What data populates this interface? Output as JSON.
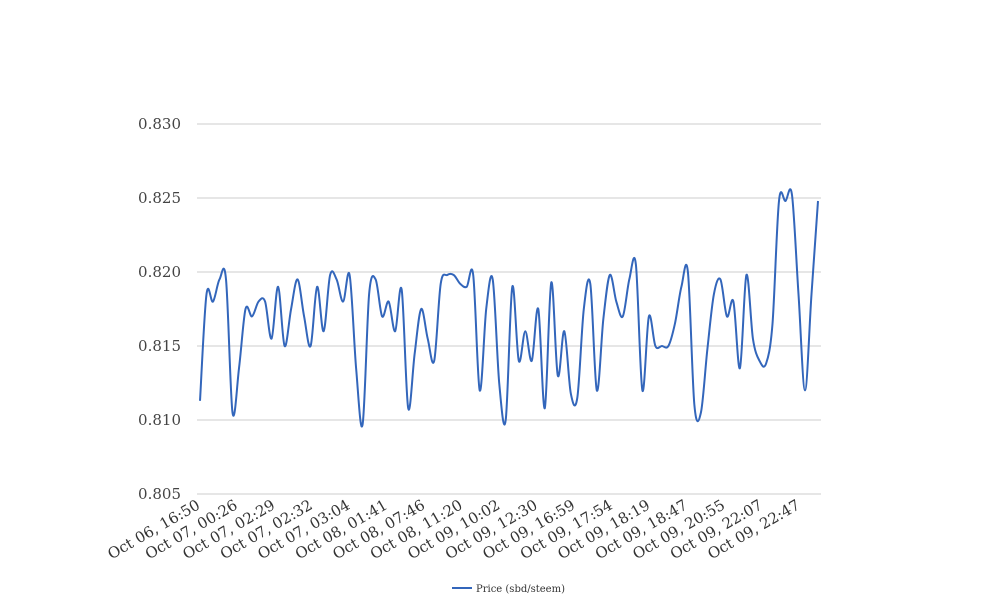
{
  "chart_data": {
    "type": "line",
    "title": "",
    "xlabel": "",
    "ylabel": "",
    "ylim": [
      0.805,
      0.83
    ],
    "yticks": [
      "0.830",
      "0.825",
      "0.820",
      "0.815",
      "0.810",
      "0.805"
    ],
    "grid": true,
    "legend_position": "bottom-center",
    "x_tick_labels": [
      "Oct 06, 16:50",
      "Oct 07, 00:26",
      "Oct 07, 02:29",
      "Oct 07, 02:32",
      "Oct 07, 03:04",
      "Oct 08, 01:41",
      "Oct 08, 07:46",
      "Oct 08, 11:20",
      "Oct 09, 10:02",
      "Oct 09, 12:30",
      "Oct 09, 16:59",
      "Oct 09, 17:54",
      "Oct 09, 18:19",
      "Oct 09, 18:47",
      "Oct 09, 20:55",
      "Oct 09, 22:07",
      "Oct 09, 22:47"
    ],
    "series": [
      {
        "name": "Price (sbd/steem)",
        "color": "#3366bb",
        "values": [
          0.8113,
          0.8185,
          0.818,
          0.8195,
          0.8195,
          0.8105,
          0.8135,
          0.8175,
          0.817,
          0.818,
          0.818,
          0.8155,
          0.819,
          0.815,
          0.8175,
          0.8195,
          0.817,
          0.815,
          0.819,
          0.816,
          0.8198,
          0.8195,
          0.818,
          0.8198,
          0.8135,
          0.8097,
          0.8185,
          0.8195,
          0.817,
          0.818,
          0.816,
          0.8188,
          0.8108,
          0.8145,
          0.8175,
          0.8155,
          0.814,
          0.8192,
          0.8198,
          0.8198,
          0.8192,
          0.819,
          0.8198,
          0.812,
          0.8175,
          0.8195,
          0.8125,
          0.81,
          0.819,
          0.814,
          0.816,
          0.814,
          0.8175,
          0.8108,
          0.8193,
          0.813,
          0.816,
          0.8118,
          0.8115,
          0.8175,
          0.8192,
          0.812,
          0.8168,
          0.8198,
          0.818,
          0.817,
          0.8195,
          0.8205,
          0.812,
          0.817,
          0.815,
          0.815,
          0.815,
          0.8165,
          0.819,
          0.82,
          0.811,
          0.8105,
          0.8148,
          0.8185,
          0.8195,
          0.817,
          0.818,
          0.8135,
          0.8198,
          0.8155,
          0.814,
          0.8138,
          0.8165,
          0.8248,
          0.8248,
          0.8252,
          0.8185,
          0.812,
          0.8185,
          0.8248
        ]
      }
    ]
  }
}
